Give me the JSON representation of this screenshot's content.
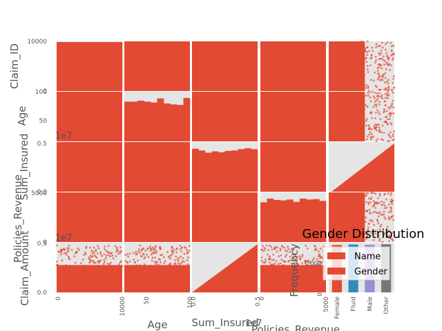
{
  "chart_data": [
    {
      "type": "scatter",
      "style": "scatter-matrix",
      "variables": [
        "Claim_ID",
        "Age",
        "Sum_Insured",
        "Policies_Revenue",
        "Claim_Amount"
      ],
      "axis_labels": [
        "Claim_ID",
        "Age",
        "Sum_Insured",
        "Policies_Revenue",
        "Claim_Amount"
      ],
      "ranges": {
        "Claim_ID": [
          0,
          10000
        ],
        "Age": [
          18,
          100
        ],
        "Sum_Insured": [
          0,
          5000000
        ],
        "Policies_Revenue": [
          0,
          5000
        ],
        "Claim_Amount": [
          0,
          5000000
        ]
      },
      "tick_labels": {
        "Claim_ID_y": [
          "10000",
          "0"
        ],
        "Age_y": [
          "100",
          "50"
        ],
        "Sum_Insured_y": [
          "0.5",
          "0.0"
        ],
        "Policies_Revenue_y": [
          "5000",
          "0"
        ],
        "Claim_Amount_y": [
          "0.5",
          "0.0"
        ],
        "Claim_ID_x": [
          "0",
          "10000"
        ],
        "Age_x": [
          "50",
          "100"
        ],
        "Sum_Insured_x": [
          "0.0",
          "0.5"
        ],
        "Policies_Revenue_x": [
          "0",
          "5000"
        ]
      },
      "offset_text": "1e7",
      "histograms": {
        "Claim_ID": [
          1000,
          1000,
          1000,
          1000,
          1000,
          1000,
          1000,
          1000,
          1000,
          1000
        ],
        "Age": [
          0.86,
          0.86,
          0.88,
          0.86,
          0.84,
          0.93,
          0.82,
          0.8,
          0.79,
          0.94
        ],
        "Sum_Insured": [
          0.97,
          0.93,
          0.88,
          0.91,
          0.89,
          0.92,
          0.93,
          0.96,
          0.98,
          0.96
        ],
        "Policies_Revenue": [
          0.86,
          0.94,
          0.91,
          0.9,
          0.92,
          0.87,
          0.94,
          0.92,
          0.93,
          0.89
        ]
      },
      "color": "#E24A33",
      "grid": true
    },
    {
      "type": "bar",
      "title": "Gender Distribution",
      "ylabel": "Frequency",
      "categories": [
        "Female",
        "Fluid",
        "Male",
        "Other"
      ],
      "series": [
        {
          "name": "Name",
          "values": [
            2480,
            2510,
            2490,
            2520
          ],
          "color": "#E24A33"
        },
        {
          "name": "Gender",
          "values": [
            2480,
            2510,
            2490,
            2520
          ],
          "colors": [
            "#E24A33",
            "#348ABD",
            "#988ED5",
            "#777777"
          ]
        }
      ],
      "ylim": [
        0,
        2600
      ],
      "yticks": [
        "0",
        "2000"
      ],
      "legend": "top-right"
    }
  ]
}
